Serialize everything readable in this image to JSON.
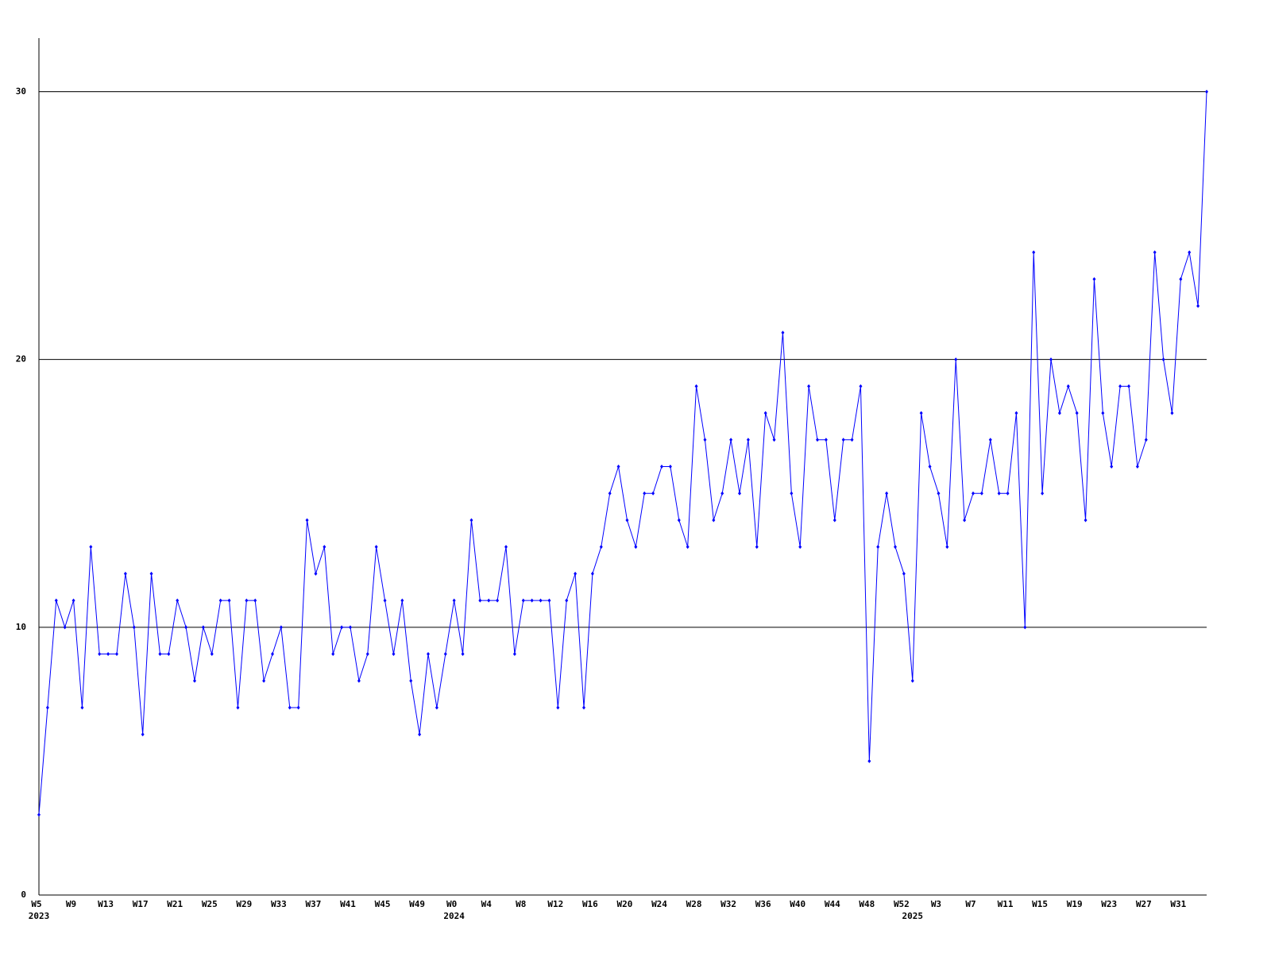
{
  "chart_data": {
    "type": "line",
    "categories": [
      "W5",
      null,
      null,
      null,
      "W9",
      null,
      null,
      null,
      "W13",
      null,
      null,
      null,
      "W17",
      null,
      null,
      null,
      "W21",
      null,
      null,
      null,
      "W25",
      null,
      null,
      null,
      "W29",
      null,
      null,
      null,
      "W33",
      null,
      null,
      null,
      "W37",
      null,
      null,
      null,
      "W41",
      null,
      null,
      null,
      "W45",
      null,
      null,
      null,
      "W49",
      null,
      null,
      null,
      "W0",
      null,
      null,
      null,
      "W4",
      null,
      null,
      null,
      "W8",
      null,
      null,
      null,
      "W12",
      null,
      null,
      null,
      "W16",
      null,
      null,
      null,
      "W20",
      null,
      null,
      null,
      "W24",
      null,
      null,
      null,
      "W28",
      null,
      null,
      null,
      "W32",
      null,
      null,
      null,
      "W36",
      null,
      null,
      null,
      "W40",
      null,
      null,
      null,
      "W44",
      null,
      null,
      null,
      "W48",
      null,
      null,
      null,
      "W52",
      null,
      null,
      null,
      "W3",
      null,
      null,
      null,
      "W7",
      null,
      null,
      null,
      "W11",
      null,
      null,
      null,
      "W15",
      null,
      null,
      null,
      "W19",
      null,
      null,
      null,
      "W23",
      null,
      null,
      null,
      "W27",
      null,
      null,
      null,
      "W31",
      null,
      null,
      null
    ],
    "years": [
      "2023",
      null,
      null,
      null,
      null,
      null,
      null,
      null,
      null,
      null,
      null,
      null,
      null,
      null,
      null,
      null,
      null,
      null,
      null,
      null,
      null,
      null,
      null,
      null,
      null,
      null,
      null,
      null,
      null,
      null,
      null,
      null,
      null,
      null,
      null,
      null,
      null,
      null,
      null,
      null,
      null,
      null,
      null,
      null,
      null,
      null,
      null,
      null,
      "2024",
      null,
      null,
      null,
      null,
      null,
      null,
      null,
      null,
      null,
      null,
      null,
      null,
      null,
      null,
      null,
      null,
      null,
      null,
      null,
      null,
      null,
      null,
      null,
      null,
      null,
      null,
      null,
      null,
      null,
      null,
      null,
      null,
      null,
      null,
      null,
      null,
      null,
      null,
      null,
      null,
      null,
      null,
      null,
      null,
      null,
      null,
      null,
      null,
      null,
      null,
      null,
      null,
      "2025",
      null,
      null,
      null,
      null,
      null,
      null,
      null,
      null,
      null,
      null,
      null,
      null,
      null,
      null,
      null,
      null,
      null,
      null,
      null,
      null,
      null,
      null,
      null,
      null,
      null,
      null,
      null,
      null,
      null,
      null
    ],
    "values": [
      3,
      7,
      11,
      10,
      11,
      7,
      13,
      9,
      9,
      9,
      12,
      10,
      6,
      12,
      9,
      9,
      11,
      10,
      8,
      10,
      9,
      11,
      11,
      7,
      11,
      11,
      8,
      9,
      10,
      7,
      7,
      14,
      12,
      13,
      9,
      10,
      10,
      8,
      9,
      13,
      11,
      9,
      11,
      8,
      6,
      9,
      7,
      9,
      11,
      9,
      14,
      11,
      11,
      11,
      13,
      9,
      11,
      11,
      11,
      11,
      7,
      11,
      12,
      7,
      12,
      13,
      15,
      16,
      14,
      13,
      15,
      15,
      16,
      16,
      14,
      13,
      19,
      17,
      14,
      15,
      17,
      15,
      17,
      13,
      18,
      17,
      21,
      15,
      13,
      19,
      17,
      17,
      14,
      17,
      17,
      19,
      5,
      13,
      15,
      13,
      12,
      8,
      18,
      16,
      15,
      13,
      20,
      14,
      15,
      15,
      17,
      15,
      15,
      18,
      10,
      24,
      15,
      20,
      18,
      19,
      18,
      14,
      23,
      18,
      16,
      19,
      19,
      16,
      17,
      24,
      20,
      18,
      23,
      24,
      22,
      30
    ],
    "color": "#0000ff",
    "ylim": [
      0,
      32
    ],
    "yticks": [
      0,
      10,
      20,
      30
    ],
    "grid": true
  }
}
